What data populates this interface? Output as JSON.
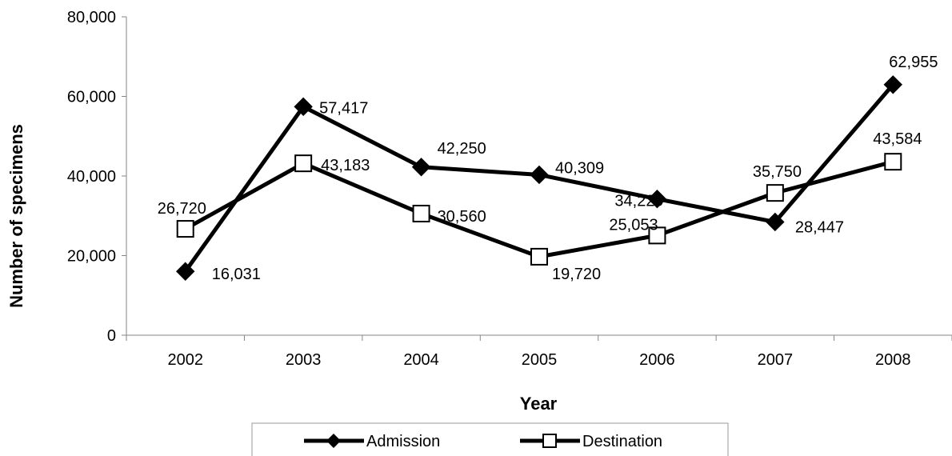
{
  "chart_data": {
    "type": "line",
    "title": "",
    "xlabel": "Year",
    "ylabel": "Number of specimens",
    "categories": [
      "2002",
      "2003",
      "2004",
      "2005",
      "2006",
      "2007",
      "2008"
    ],
    "ylim": [
      0,
      80000
    ],
    "yticks": [
      0,
      20000,
      40000,
      60000,
      80000
    ],
    "ytick_labels": [
      "0",
      "20,000",
      "40,000",
      "60,000",
      "80,000"
    ],
    "grid": false,
    "legend_position": "bottom",
    "series": [
      {
        "name": "Admission",
        "marker": "filled-diamond",
        "color": "#000000",
        "values": [
          16031,
          57417,
          42250,
          40309,
          34229,
          28447,
          62955
        ],
        "labels": [
          "16,031",
          "57,417",
          "42,250",
          "40,309",
          "34,229",
          "28,447",
          "62,955"
        ]
      },
      {
        "name": "Destination",
        "marker": "open-square",
        "color": "#000000",
        "values": [
          26720,
          43183,
          30560,
          19720,
          25053,
          35750,
          43584
        ],
        "labels": [
          "26,720",
          "43,183",
          "30,560",
          "19,720",
          "25,053",
          "35,750",
          "43,584"
        ]
      }
    ]
  }
}
